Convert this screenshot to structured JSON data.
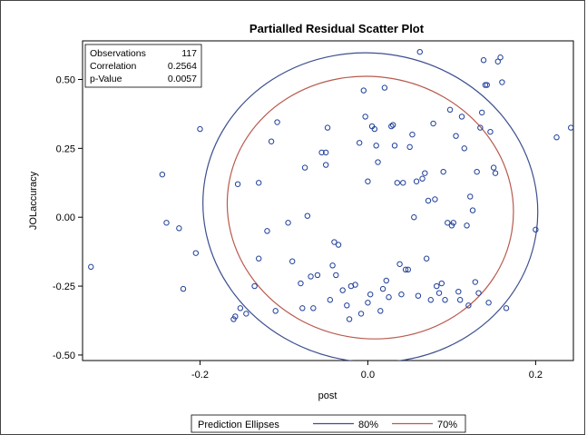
{
  "chart_data": {
    "type": "scatter",
    "title": "Partialled Residual Scatter Plot",
    "xlabel": "post",
    "ylabel": "JOLaccuracy",
    "xlim": [
      -0.34,
      0.245
    ],
    "ylim": [
      -0.52,
      0.64
    ],
    "x_ticks": [
      -0.2,
      0.0,
      0.2
    ],
    "x_tick_labels": [
      "-0.2",
      "0.0",
      "0.2"
    ],
    "y_ticks": [
      -0.5,
      -0.25,
      0.0,
      0.25,
      0.5
    ],
    "y_tick_labels": [
      "-0.50",
      "-0.25",
      "0.00",
      "0.25",
      "0.50"
    ],
    "grid": false,
    "marker_color": "#1f3f9a",
    "stats": {
      "rows": [
        {
          "label": "Observations",
          "value": "117"
        },
        {
          "label": "Correlation",
          "value": "0.2564"
        },
        {
          "label": "p-Value",
          "value": "0.0057"
        }
      ]
    },
    "legend": {
      "title": "Prediction Ellipses",
      "position": "bottom",
      "items": [
        {
          "label": "80%",
          "color": "#3d4f8f"
        },
        {
          "label": "70%",
          "color": "#b85a4e"
        }
      ]
    },
    "ellipses": [
      {
        "level": "80%",
        "color": "#3d4f8f",
        "cx": 0.003,
        "cy": 0.035,
        "rx": 0.2,
        "ry": 0.56,
        "angle_deg": 10
      },
      {
        "level": "70%",
        "color": "#b85a4e",
        "cx": 0.003,
        "cy": 0.035,
        "rx": 0.171,
        "ry": 0.475,
        "angle_deg": 10
      }
    ],
    "points": [
      [
        -0.33,
        -0.18
      ],
      [
        -0.245,
        0.155
      ],
      [
        -0.24,
        -0.02
      ],
      [
        -0.225,
        -0.04
      ],
      [
        -0.22,
        -0.26
      ],
      [
        -0.205,
        -0.13
      ],
      [
        -0.2,
        0.32
      ],
      [
        -0.16,
        -0.37
      ],
      [
        -0.158,
        -0.36
      ],
      [
        -0.155,
        0.12
      ],
      [
        -0.152,
        -0.33
      ],
      [
        -0.145,
        -0.35
      ],
      [
        -0.135,
        -0.25
      ],
      [
        -0.13,
        0.125
      ],
      [
        -0.13,
        -0.15
      ],
      [
        -0.12,
        -0.05
      ],
      [
        -0.115,
        0.275
      ],
      [
        -0.11,
        -0.34
      ],
      [
        -0.108,
        0.345
      ],
      [
        -0.095,
        -0.02
      ],
      [
        -0.09,
        -0.16
      ],
      [
        -0.08,
        -0.24
      ],
      [
        -0.078,
        -0.33
      ],
      [
        -0.075,
        0.18
      ],
      [
        -0.072,
        0.005
      ],
      [
        -0.068,
        -0.215
      ],
      [
        -0.065,
        -0.33
      ],
      [
        -0.06,
        -0.21
      ],
      [
        -0.055,
        0.235
      ],
      [
        -0.05,
        0.19
      ],
      [
        -0.05,
        0.235
      ],
      [
        -0.048,
        0.325
      ],
      [
        -0.045,
        -0.3
      ],
      [
        -0.042,
        -0.175
      ],
      [
        -0.04,
        -0.09
      ],
      [
        -0.038,
        -0.21
      ],
      [
        -0.035,
        -0.1
      ],
      [
        -0.03,
        -0.265
      ],
      [
        -0.025,
        -0.32
      ],
      [
        -0.022,
        -0.37
      ],
      [
        -0.02,
        -0.25
      ],
      [
        -0.015,
        -0.245
      ],
      [
        -0.01,
        0.27
      ],
      [
        -0.008,
        -0.35
      ],
      [
        -0.005,
        0.46
      ],
      [
        -0.003,
        0.365
      ],
      [
        0.0,
        0.13
      ],
      [
        0.0,
        -0.31
      ],
      [
        0.003,
        -0.28
      ],
      [
        0.005,
        0.33
      ],
      [
        0.008,
        0.32
      ],
      [
        0.01,
        0.26
      ],
      [
        0.012,
        0.2
      ],
      [
        0.015,
        -0.34
      ],
      [
        0.018,
        -0.26
      ],
      [
        0.02,
        0.47
      ],
      [
        0.022,
        -0.23
      ],
      [
        0.025,
        -0.29
      ],
      [
        0.028,
        0.33
      ],
      [
        0.03,
        0.335
      ],
      [
        0.032,
        0.26
      ],
      [
        0.035,
        0.125
      ],
      [
        0.038,
        -0.17
      ],
      [
        0.04,
        -0.28
      ],
      [
        0.042,
        0.125
      ],
      [
        0.045,
        -0.19
      ],
      [
        0.048,
        -0.19
      ],
      [
        0.05,
        0.255
      ],
      [
        0.053,
        0.3
      ],
      [
        0.055,
        0.0
      ],
      [
        0.058,
        0.13
      ],
      [
        0.06,
        -0.285
      ],
      [
        0.062,
        0.6
      ],
      [
        0.065,
        0.14
      ],
      [
        0.068,
        0.16
      ],
      [
        0.07,
        -0.15
      ],
      [
        0.072,
        0.06
      ],
      [
        0.075,
        -0.3
      ],
      [
        0.078,
        0.34
      ],
      [
        0.08,
        0.065
      ],
      [
        0.082,
        -0.25
      ],
      [
        0.085,
        -0.275
      ],
      [
        0.088,
        -0.24
      ],
      [
        0.09,
        0.165
      ],
      [
        0.092,
        -0.3
      ],
      [
        0.095,
        -0.02
      ],
      [
        0.098,
        0.39
      ],
      [
        0.1,
        -0.03
      ],
      [
        0.102,
        -0.02
      ],
      [
        0.105,
        0.295
      ],
      [
        0.108,
        -0.27
      ],
      [
        0.11,
        -0.3
      ],
      [
        0.112,
        0.365
      ],
      [
        0.115,
        0.25
      ],
      [
        0.118,
        -0.03
      ],
      [
        0.12,
        -0.32
      ],
      [
        0.122,
        0.075
      ],
      [
        0.125,
        0.025
      ],
      [
        0.128,
        -0.235
      ],
      [
        0.13,
        0.165
      ],
      [
        0.132,
        -0.275
      ],
      [
        0.134,
        0.325
      ],
      [
        0.136,
        0.38
      ],
      [
        0.138,
        0.57
      ],
      [
        0.14,
        0.48
      ],
      [
        0.142,
        0.48
      ],
      [
        0.144,
        -0.31
      ],
      [
        0.146,
        0.31
      ],
      [
        0.15,
        0.18
      ],
      [
        0.152,
        0.16
      ],
      [
        0.155,
        0.565
      ],
      [
        0.158,
        0.58
      ],
      [
        0.16,
        0.49
      ],
      [
        0.165,
        -0.33
      ],
      [
        0.2,
        -0.045
      ],
      [
        0.225,
        0.29
      ],
      [
        0.242,
        0.325
      ]
    ]
  }
}
